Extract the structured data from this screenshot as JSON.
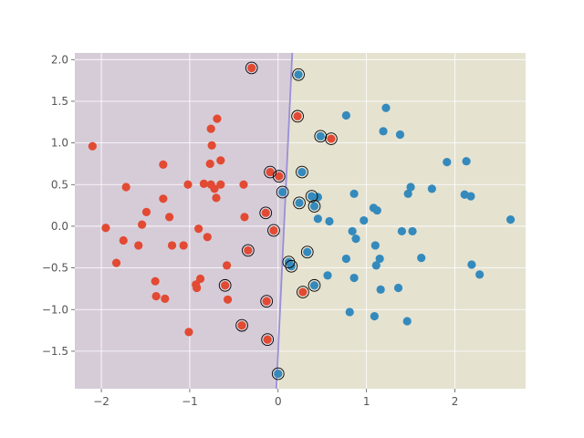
{
  "chart_data": {
    "type": "scatter",
    "title": "",
    "xlabel": "",
    "ylabel": "",
    "xlim": [
      -2.3,
      2.8
    ],
    "ylim": [
      -1.95,
      2.08
    ],
    "grid": true,
    "x_ticks": [
      -2,
      -1,
      0,
      1,
      2
    ],
    "x_tick_labels": [
      "−2",
      "−1",
      "0",
      "1",
      "2"
    ],
    "y_ticks": [
      -1.5,
      -1.0,
      -0.5,
      0.0,
      0.5,
      1.0,
      1.5,
      2.0
    ],
    "y_tick_labels": [
      "−1.5",
      "−1.0",
      "−0.5",
      "0.0",
      "0.5",
      "1.0",
      "1.5",
      "2.0"
    ],
    "decision_boundary": [
      [
        -0.02,
        -1.95
      ],
      [
        0.16,
        2.08
      ]
    ],
    "colors": {
      "class_0": "#E24A33",
      "class_1": "#348ABD",
      "region_0": "#D6CCD8",
      "region_1": "#E5E2D0",
      "boundary": "#9A8FD8",
      "support_vector_ring": "#000000"
    },
    "series": [
      {
        "points": [
          [
            -2.1,
            0.96
          ],
          [
            -1.95,
            -0.02
          ],
          [
            -1.83,
            -0.44
          ],
          [
            -1.75,
            -0.17
          ],
          [
            -1.72,
            0.47
          ],
          [
            -1.58,
            -0.23
          ],
          [
            -1.54,
            0.02
          ],
          [
            -1.49,
            0.17
          ],
          [
            -1.39,
            -0.66
          ],
          [
            -1.38,
            -0.84
          ],
          [
            -1.3,
            0.74
          ],
          [
            -1.3,
            0.33
          ],
          [
            -1.28,
            -0.87
          ],
          [
            -1.23,
            0.11
          ],
          [
            -1.2,
            -0.23
          ],
          [
            -1.07,
            -0.23
          ],
          [
            -1.02,
            0.5
          ],
          [
            -1.01,
            -1.27
          ],
          [
            -0.93,
            -0.7
          ],
          [
            -0.92,
            -0.74
          ],
          [
            -0.9,
            -0.03
          ],
          [
            -0.88,
            -0.63
          ],
          [
            -0.84,
            0.51
          ],
          [
            -0.8,
            -0.13
          ],
          [
            -0.77,
            0.75
          ],
          [
            -0.76,
            0.5
          ],
          [
            -0.76,
            1.17
          ],
          [
            -0.75,
            0.97
          ],
          [
            -0.72,
            0.45
          ],
          [
            -0.7,
            0.34
          ],
          [
            -0.69,
            1.29
          ],
          [
            -0.65,
            0.79
          ],
          [
            -0.65,
            0.5
          ],
          [
            -0.6,
            -0.71
          ],
          [
            -0.58,
            -0.47
          ],
          [
            -0.57,
            -0.88
          ],
          [
            -0.41,
            -1.19
          ],
          [
            -0.39,
            0.5
          ],
          [
            -0.38,
            0.11
          ],
          [
            -0.34,
            -0.29
          ],
          [
            -0.3,
            1.9
          ],
          [
            -0.14,
            0.16
          ],
          [
            -0.13,
            -0.9
          ],
          [
            -0.12,
            -1.36
          ],
          [
            -0.09,
            0.65
          ],
          [
            -0.05,
            -0.05
          ],
          [
            0.01,
            0.6
          ],
          [
            0.22,
            1.32
          ],
          [
            0.28,
            -0.79
          ],
          [
            0.6,
            1.05
          ]
        ]
      },
      {
        "points": [
          [
            0.0,
            -1.77
          ],
          [
            0.05,
            0.41
          ],
          [
            0.12,
            -0.43
          ],
          [
            0.15,
            -0.48
          ],
          [
            0.23,
            1.82
          ],
          [
            0.24,
            0.28
          ],
          [
            0.27,
            0.65
          ],
          [
            0.33,
            -0.31
          ],
          [
            0.38,
            0.36
          ],
          [
            0.41,
            -0.71
          ],
          [
            0.41,
            0.24
          ],
          [
            0.45,
            0.35
          ],
          [
            0.45,
            0.09
          ],
          [
            0.48,
            1.08
          ],
          [
            0.56,
            -0.59
          ],
          [
            0.58,
            0.06
          ],
          [
            0.77,
            1.33
          ],
          [
            0.77,
            -0.39
          ],
          [
            0.81,
            -1.03
          ],
          [
            0.84,
            -0.06
          ],
          [
            0.86,
            0.39
          ],
          [
            0.86,
            -0.62
          ],
          [
            0.88,
            -0.15
          ],
          [
            0.97,
            0.07
          ],
          [
            1.08,
            0.22
          ],
          [
            1.09,
            -1.08
          ],
          [
            1.1,
            -0.23
          ],
          [
            1.11,
            -0.47
          ],
          [
            1.12,
            0.19
          ],
          [
            1.15,
            -0.39
          ],
          [
            1.16,
            -0.76
          ],
          [
            1.19,
            1.14
          ],
          [
            1.22,
            1.42
          ],
          [
            1.36,
            -0.74
          ],
          [
            1.38,
            1.1
          ],
          [
            1.4,
            -0.06
          ],
          [
            1.46,
            -1.14
          ],
          [
            1.47,
            0.39
          ],
          [
            1.5,
            0.47
          ],
          [
            1.52,
            -0.06
          ],
          [
            1.62,
            -0.38
          ],
          [
            1.74,
            0.45
          ],
          [
            1.91,
            0.77
          ],
          [
            2.11,
            0.38
          ],
          [
            2.13,
            0.78
          ],
          [
            2.18,
            0.36
          ],
          [
            2.19,
            -0.46
          ],
          [
            2.28,
            -0.58
          ],
          [
            2.63,
            0.08
          ]
        ]
      }
    ],
    "support_vectors": [
      [
        -0.3,
        1.9
      ],
      [
        -0.6,
        -0.71
      ],
      [
        -0.41,
        -1.19
      ],
      [
        -0.34,
        -0.29
      ],
      [
        -0.14,
        0.16
      ],
      [
        -0.13,
        -0.9
      ],
      [
        -0.12,
        -1.36
      ],
      [
        -0.09,
        0.65
      ],
      [
        -0.05,
        -0.05
      ],
      [
        0.01,
        0.6
      ],
      [
        0.22,
        1.32
      ],
      [
        0.28,
        -0.79
      ],
      [
        0.6,
        1.05
      ],
      [
        0.0,
        -1.77
      ],
      [
        0.05,
        0.41
      ],
      [
        0.12,
        -0.43
      ],
      [
        0.15,
        -0.48
      ],
      [
        0.23,
        1.82
      ],
      [
        0.24,
        0.28
      ],
      [
        0.27,
        0.65
      ],
      [
        0.33,
        -0.31
      ],
      [
        0.38,
        0.36
      ],
      [
        0.41,
        -0.71
      ],
      [
        0.41,
        0.24
      ],
      [
        0.48,
        1.08
      ]
    ]
  }
}
